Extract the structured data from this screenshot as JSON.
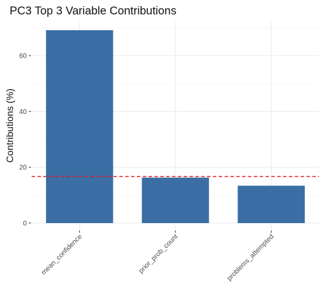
{
  "chart_data": {
    "type": "bar",
    "title": "PC3 Top 3 Variable Contributions",
    "xlabel": "",
    "ylabel": "Contributions (%)",
    "categories": [
      "mean_confidence",
      "prior_prob_count",
      "problems_attempted"
    ],
    "values": [
      69.1,
      16.3,
      13.4
    ],
    "reference_line": {
      "y": 16.67,
      "style": "dashed",
      "color": "#e41a1c"
    },
    "ylim": [
      0,
      70
    ],
    "y_ticks": [
      0,
      20,
      40,
      60
    ],
    "bar_color": "#3a6ea5",
    "grid": true,
    "legend": "none"
  }
}
